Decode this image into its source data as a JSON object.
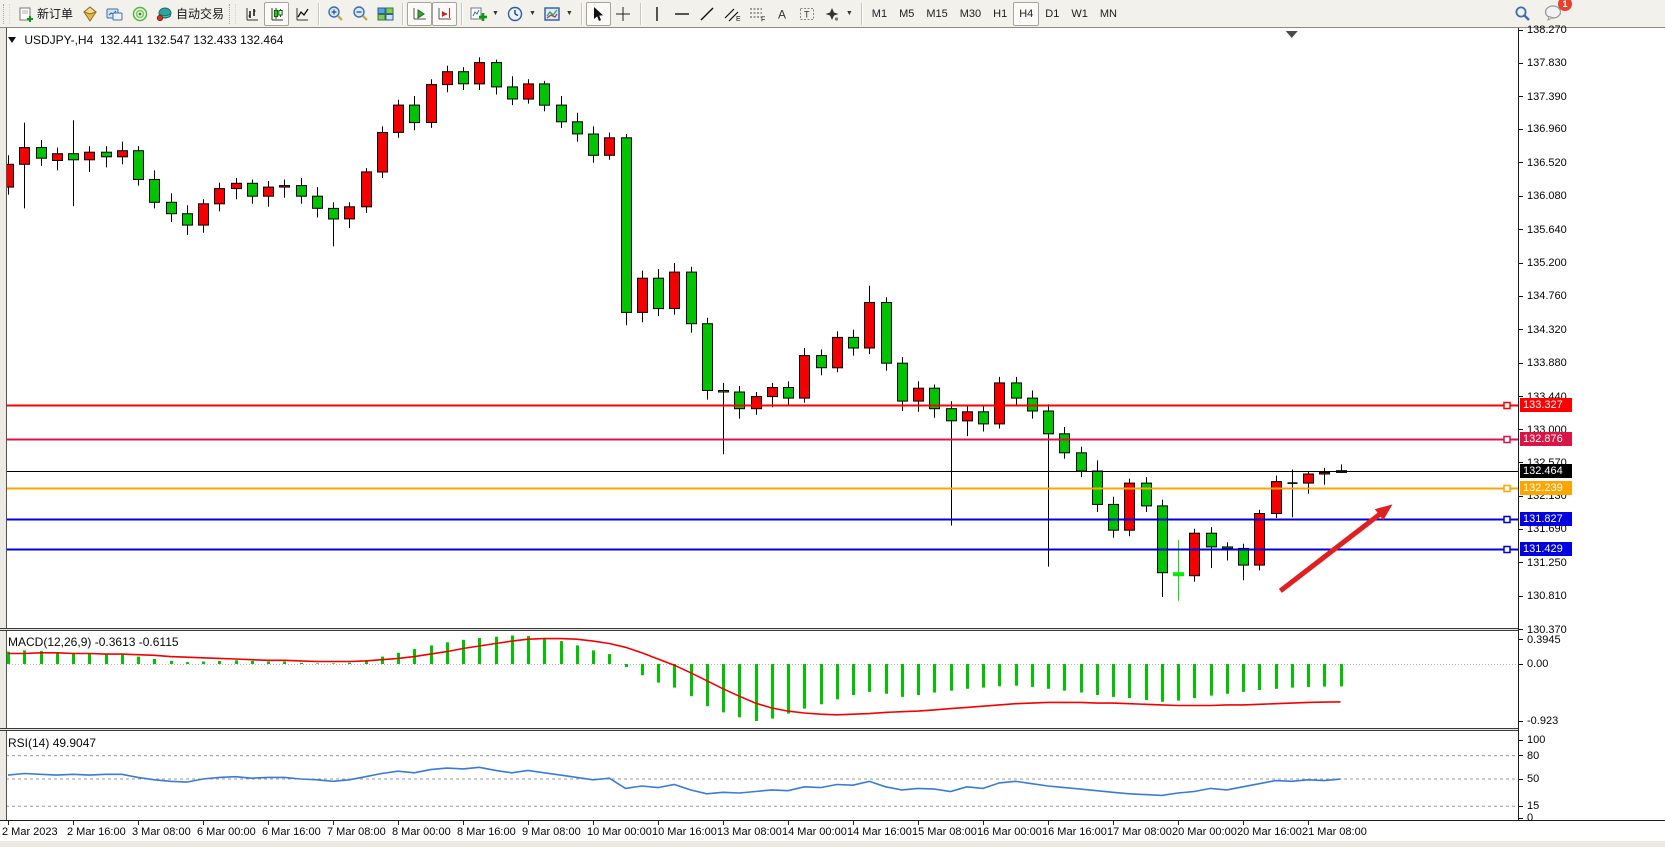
{
  "toolbar": {
    "new_order": "新订单",
    "auto_trading": "自动交易",
    "timeframes": [
      "M1",
      "M5",
      "M15",
      "M30",
      "H1",
      "H4",
      "D1",
      "W1",
      "MN"
    ],
    "active_timeframe": "H4",
    "badge_count": "1"
  },
  "chart": {
    "title": "USDJPY-,H4",
    "ohlc": "132.441 132.547 132.433 132.464"
  },
  "indicators": {
    "macd_label": "MACD(12,26,9)",
    "macd_values": "-0.3613 -0.6115",
    "rsi_label": "RSI(14)",
    "rsi_value": "49.9047"
  },
  "chart_data": {
    "type": "candlestick",
    "symbol": "USDJPY-",
    "timeframe": "H4",
    "price_max": 138.27,
    "price_min": 130.37,
    "candle_spacing": 16.25,
    "up_color": "#f40000",
    "down_color": "#00c400",
    "candles": [
      [
        136.2,
        136.62,
        136.1,
        136.5
      ],
      [
        136.5,
        137.05,
        135.92,
        136.72
      ],
      [
        136.72,
        136.82,
        136.48,
        136.58
      ],
      [
        136.55,
        136.72,
        136.42,
        136.64
      ],
      [
        136.64,
        137.08,
        135.95,
        136.56
      ],
      [
        136.56,
        136.74,
        136.4,
        136.66
      ],
      [
        136.66,
        136.74,
        136.46,
        136.6
      ],
      [
        136.6,
        136.8,
        136.5,
        136.68
      ],
      [
        136.68,
        136.74,
        136.22,
        136.3
      ],
      [
        136.3,
        136.42,
        135.92,
        136.0
      ],
      [
        136.0,
        136.12,
        135.74,
        135.85
      ],
      [
        135.85,
        135.96,
        135.57,
        135.7
      ],
      [
        135.7,
        136.04,
        135.6,
        135.98
      ],
      [
        135.98,
        136.26,
        135.88,
        136.18
      ],
      [
        136.18,
        136.32,
        136.04,
        136.25
      ],
      [
        136.25,
        136.3,
        135.98,
        136.08
      ],
      [
        136.08,
        136.28,
        135.94,
        136.2
      ],
      [
        136.2,
        136.3,
        136.06,
        136.22
      ],
      [
        136.22,
        136.32,
        135.98,
        136.08
      ],
      [
        136.08,
        136.2,
        135.8,
        135.92
      ],
      [
        135.92,
        136.0,
        135.42,
        135.78
      ],
      [
        135.78,
        136.0,
        135.66,
        135.94
      ],
      [
        135.94,
        136.45,
        135.86,
        136.4
      ],
      [
        136.4,
        137.0,
        136.32,
        136.92
      ],
      [
        136.92,
        137.35,
        136.85,
        137.28
      ],
      [
        137.28,
        137.4,
        136.95,
        137.05
      ],
      [
        137.05,
        137.62,
        136.98,
        137.55
      ],
      [
        137.55,
        137.8,
        137.45,
        137.72
      ],
      [
        137.72,
        137.78,
        137.48,
        137.56
      ],
      [
        137.56,
        137.91,
        137.48,
        137.84
      ],
      [
        137.84,
        137.88,
        137.42,
        137.52
      ],
      [
        137.52,
        137.66,
        137.28,
        137.36
      ],
      [
        137.36,
        137.62,
        137.3,
        137.56
      ],
      [
        137.56,
        137.6,
        137.2,
        137.28
      ],
      [
        137.28,
        137.4,
        136.98,
        137.06
      ],
      [
        137.06,
        137.18,
        136.8,
        136.9
      ],
      [
        136.9,
        137.0,
        136.52,
        136.62
      ],
      [
        136.62,
        136.92,
        136.56,
        136.85
      ],
      [
        136.85,
        136.9,
        134.38,
        134.55
      ],
      [
        134.55,
        135.1,
        134.42,
        135.0
      ],
      [
        135.0,
        135.12,
        134.5,
        134.6
      ],
      [
        134.6,
        135.2,
        134.52,
        135.08
      ],
      [
        135.08,
        135.15,
        134.28,
        134.4
      ],
      [
        134.4,
        134.48,
        133.4,
        133.52
      ],
      [
        133.52,
        133.62,
        132.68,
        133.5
      ],
      [
        133.5,
        133.58,
        133.15,
        133.28
      ],
      [
        133.28,
        133.5,
        133.2,
        133.44
      ],
      [
        133.44,
        133.62,
        133.3,
        133.56
      ],
      [
        133.56,
        133.64,
        133.32,
        133.42
      ],
      [
        133.42,
        134.08,
        133.36,
        133.98
      ],
      [
        133.98,
        134.06,
        133.72,
        133.82
      ],
      [
        133.82,
        134.3,
        133.76,
        134.22
      ],
      [
        134.22,
        134.32,
        133.98,
        134.08
      ],
      [
        134.08,
        134.9,
        134.0,
        134.68
      ],
      [
        134.68,
        134.75,
        133.78,
        133.88
      ],
      [
        133.88,
        133.96,
        133.25,
        133.38
      ],
      [
        133.38,
        133.64,
        133.24,
        133.55
      ],
      [
        133.55,
        133.6,
        133.16,
        133.28
      ],
      [
        133.28,
        133.38,
        131.74,
        133.12
      ],
      [
        133.12,
        133.32,
        132.92,
        133.24
      ],
      [
        133.24,
        133.32,
        132.98,
        133.08
      ],
      [
        133.08,
        133.7,
        133.02,
        133.62
      ],
      [
        133.62,
        133.7,
        133.32,
        133.42
      ],
      [
        133.42,
        133.52,
        133.15,
        133.25
      ],
      [
        133.25,
        133.34,
        131.2,
        132.95
      ],
      [
        132.95,
        133.04,
        132.62,
        132.7
      ],
      [
        132.7,
        132.78,
        132.38,
        132.46
      ],
      [
        132.46,
        132.6,
        131.92,
        132.02
      ],
      [
        132.02,
        132.12,
        131.58,
        131.68
      ],
      [
        131.68,
        132.36,
        131.6,
        132.3
      ],
      [
        132.3,
        132.38,
        131.92,
        132.0
      ],
      [
        132.0,
        132.08,
        130.8,
        131.12
      ],
      [
        131.12,
        131.55,
        130.75,
        131.08
      ],
      [
        131.08,
        131.7,
        131.0,
        131.64
      ],
      [
        131.64,
        131.72,
        131.18,
        131.46
      ],
      [
        131.46,
        131.52,
        131.28,
        131.44
      ],
      [
        131.44,
        131.5,
        131.02,
        131.22
      ],
      [
        131.22,
        131.95,
        131.15,
        131.9
      ],
      [
        131.9,
        132.4,
        131.84,
        132.32
      ],
      [
        132.32,
        132.48,
        131.85,
        132.3
      ],
      [
        132.3,
        132.46,
        132.16,
        132.42
      ],
      [
        132.42,
        132.5,
        132.28,
        132.44
      ],
      [
        132.441,
        132.547,
        132.433,
        132.464
      ]
    ],
    "special_colors": {
      "72": "#00ee00"
    },
    "levels": [
      {
        "price": 133.327,
        "label": "133.327",
        "color": "#ff0000",
        "current": false
      },
      {
        "price": 132.876,
        "label": "132.876",
        "color": "#dc1446",
        "current": false
      },
      {
        "price": 132.464,
        "label": "132.464",
        "color": "#000000",
        "current": true
      },
      {
        "price": 132.239,
        "label": "132.239",
        "color": "#ffa500",
        "current": false
      },
      {
        "price": 131.827,
        "label": "131.827",
        "color": "#0000e0",
        "current": false
      },
      {
        "price": 131.429,
        "label": "131.429",
        "color": "#0000e0",
        "current": false
      }
    ],
    "price_ticks": [
      "138.270",
      "137.830",
      "137.390",
      "136.960",
      "136.520",
      "136.080",
      "135.640",
      "135.200",
      "134.760",
      "134.320",
      "133.880",
      "133.440",
      "133.000",
      "132.570",
      "132.130",
      "131.690",
      "131.250",
      "130.810",
      "130.370"
    ],
    "time_labels": [
      "2 Mar 2023",
      "2 Mar 16:00",
      "3 Mar 08:00",
      "6 Mar 00:00",
      "6 Mar 16:00",
      "7 Mar 08:00",
      "8 Mar 00:00",
      "8 Mar 16:00",
      "9 Mar 08:00",
      "10 Mar 00:00",
      "10 Mar 16:00",
      "13 Mar 08:00",
      "14 Mar 00:00",
      "14 Mar 16:00",
      "15 Mar 08:00",
      "16 Mar 00:00",
      "16 Mar 16:00",
      "17 Mar 08:00",
      "20 Mar 00:00",
      "20 Mar 16:00",
      "21 Mar 08:00"
    ],
    "macd": {
      "hist": [
        0.2,
        0.22,
        0.21,
        0.19,
        0.18,
        0.17,
        0.16,
        0.15,
        0.12,
        0.08,
        0.05,
        0.03,
        0.04,
        0.05,
        0.06,
        0.05,
        0.04,
        0.04,
        0.02,
        0.01,
        0.01,
        0.02,
        0.06,
        0.12,
        0.18,
        0.24,
        0.3,
        0.35,
        0.39,
        0.42,
        0.44,
        0.46,
        0.45,
        0.42,
        0.37,
        0.3,
        0.22,
        0.16,
        -0.05,
        -0.18,
        -0.3,
        -0.38,
        -0.52,
        -0.68,
        -0.78,
        -0.86,
        -0.92,
        -0.88,
        -0.8,
        -0.72,
        -0.65,
        -0.57,
        -0.5,
        -0.45,
        -0.48,
        -0.53,
        -0.5,
        -0.46,
        -0.43,
        -0.4,
        -0.38,
        -0.36,
        -0.35,
        -0.37,
        -0.4,
        -0.43,
        -0.46,
        -0.5,
        -0.53,
        -0.55,
        -0.58,
        -0.61,
        -0.59,
        -0.55,
        -0.51,
        -0.48,
        -0.45,
        -0.42,
        -0.4,
        -0.38,
        -0.37,
        -0.365,
        -0.3613
      ],
      "signal": [
        0.17,
        0.17,
        0.18,
        0.18,
        0.17,
        0.17,
        0.16,
        0.16,
        0.15,
        0.14,
        0.12,
        0.11,
        0.1,
        0.09,
        0.08,
        0.07,
        0.06,
        0.06,
        0.05,
        0.04,
        0.04,
        0.04,
        0.05,
        0.07,
        0.09,
        0.12,
        0.16,
        0.2,
        0.25,
        0.29,
        0.33,
        0.37,
        0.4,
        0.41,
        0.41,
        0.4,
        0.37,
        0.33,
        0.27,
        0.18,
        0.08,
        -0.02,
        -0.14,
        -0.27,
        -0.4,
        -0.52,
        -0.63,
        -0.71,
        -0.76,
        -0.79,
        -0.81,
        -0.82,
        -0.81,
        -0.8,
        -0.78,
        -0.77,
        -0.76,
        -0.74,
        -0.72,
        -0.7,
        -0.68,
        -0.66,
        -0.64,
        -0.63,
        -0.62,
        -0.62,
        -0.62,
        -0.63,
        -0.63,
        -0.64,
        -0.65,
        -0.66,
        -0.67,
        -0.67,
        -0.67,
        -0.66,
        -0.66,
        -0.65,
        -0.64,
        -0.63,
        -0.62,
        -0.615,
        -0.6115
      ],
      "axis_labels": [
        "0.3945",
        "0.00",
        "-0.923"
      ],
      "axis_values": [
        0.3945,
        0,
        -0.923
      ]
    },
    "rsi": {
      "values": [
        55,
        57,
        56,
        55,
        56,
        55,
        56,
        56,
        52,
        49,
        47,
        46,
        50,
        52,
        53,
        51,
        52,
        52,
        50,
        49,
        47,
        49,
        53,
        57,
        60,
        58,
        62,
        64,
        63,
        65,
        61,
        58,
        61,
        58,
        55,
        52,
        49,
        51,
        38,
        41,
        39,
        43,
        36,
        31,
        33,
        32,
        34,
        36,
        35,
        40,
        39,
        43,
        42,
        47,
        40,
        36,
        38,
        37,
        34,
        40,
        38,
        45,
        47,
        44,
        41,
        39,
        37,
        35,
        33,
        31,
        30,
        29,
        32,
        34,
        38,
        36,
        40,
        44,
        48,
        47,
        49,
        48,
        49.9
      ],
      "levels": [
        80,
        50,
        15
      ],
      "axis_labels": [
        "100",
        "80",
        "50",
        "15",
        "0"
      ],
      "axis_values": [
        100,
        80,
        50,
        15,
        0
      ]
    },
    "arrow": {
      "from_bar": 78.3,
      "from_price": 130.88,
      "to_bar": 85.2,
      "to_price": 132.02,
      "color": "#e02020"
    },
    "shift_marker_bar": 79
  }
}
